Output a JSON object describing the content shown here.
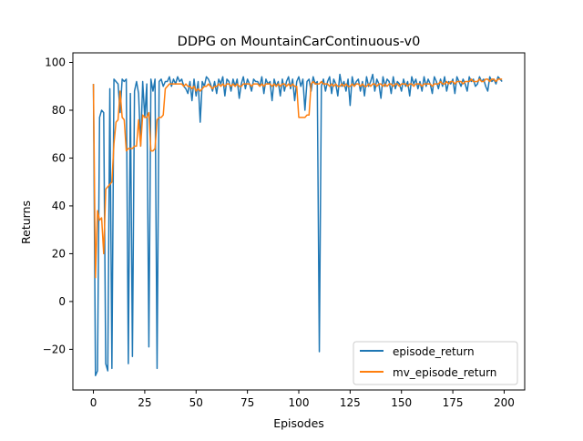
{
  "chart_data": {
    "type": "line",
    "title": "DDPG on MountainCarContinuous-v0",
    "xlabel": "Episodes",
    "ylabel": "Returns",
    "xlim": [
      -10,
      210
    ],
    "ylim": [
      -37,
      104
    ],
    "xticks": [
      0,
      25,
      50,
      75,
      100,
      125,
      150,
      175,
      200
    ],
    "yticks": [
      -20,
      0,
      20,
      40,
      60,
      80,
      100
    ],
    "grid": false,
    "legend_position": "lower-right",
    "series": [
      {
        "name": "episode_return",
        "color": "#1f77b4",
        "x": [
          0,
          1,
          2,
          3,
          4,
          5,
          6,
          7,
          8,
          9,
          10,
          11,
          12,
          13,
          14,
          15,
          16,
          17,
          18,
          19,
          20,
          21,
          22,
          23,
          24,
          25,
          26,
          27,
          28,
          29,
          30,
          31,
          32,
          33,
          34,
          35,
          36,
          37,
          38,
          39,
          40,
          41,
          42,
          43,
          44,
          45,
          46,
          47,
          48,
          49,
          50,
          51,
          52,
          53,
          54,
          55,
          56,
          57,
          58,
          59,
          60,
          61,
          62,
          63,
          64,
          65,
          66,
          67,
          68,
          69,
          70,
          71,
          72,
          73,
          74,
          75,
          76,
          77,
          78,
          79,
          80,
          81,
          82,
          83,
          84,
          85,
          86,
          87,
          88,
          89,
          90,
          91,
          92,
          93,
          94,
          95,
          96,
          97,
          98,
          99,
          100,
          101,
          102,
          103,
          104,
          105,
          106,
          107,
          108,
          109,
          110,
          111,
          112,
          113,
          114,
          115,
          116,
          117,
          118,
          119,
          120,
          121,
          122,
          123,
          124,
          125,
          126,
          127,
          128,
          129,
          130,
          131,
          132,
          133,
          134,
          135,
          136,
          137,
          138,
          139,
          140,
          141,
          142,
          143,
          144,
          145,
          146,
          147,
          148,
          149,
          150,
          151,
          152,
          153,
          154,
          155,
          156,
          157,
          158,
          159,
          160,
          161,
          162,
          163,
          164,
          165,
          166,
          167,
          168,
          169,
          170,
          171,
          172,
          173,
          174,
          175,
          176,
          177,
          178,
          179,
          180,
          181,
          182,
          183,
          184,
          185,
          186,
          187,
          188,
          189,
          190,
          191,
          192,
          193,
          194,
          195,
          196,
          197,
          198,
          199
        ],
        "y": [
          91,
          -31,
          -29,
          77,
          80,
          79,
          -26,
          -29,
          89,
          -28,
          93,
          92,
          91,
          79,
          93,
          92,
          93,
          -26,
          87,
          -23,
          88,
          92,
          87,
          65,
          92,
          77,
          91,
          -19,
          93,
          88,
          93,
          -28,
          92,
          93,
          90,
          92,
          92,
          94,
          90,
          93,
          91,
          94,
          92,
          93,
          90,
          89,
          87,
          92,
          84,
          93,
          86,
          92,
          75,
          92,
          90,
          94,
          93,
          91,
          88,
          92,
          87,
          93,
          91,
          94,
          86,
          93,
          92,
          88,
          93,
          90,
          93,
          85,
          91,
          94,
          89,
          93,
          91,
          88,
          93,
          92,
          92,
          90,
          94,
          87,
          93,
          91,
          92,
          84,
          93,
          90,
          92,
          86,
          93,
          88,
          92,
          94,
          89,
          93,
          84,
          92,
          94,
          90,
          93,
          80,
          92,
          93,
          88,
          94,
          91,
          92,
          -21,
          90,
          93,
          88,
          92,
          94,
          87,
          93,
          91,
          86,
          95,
          90,
          92,
          88,
          93,
          82,
          94,
          90,
          92,
          93,
          88,
          92,
          86,
          94,
          90,
          92,
          95,
          88,
          93,
          91,
          85,
          94,
          90,
          93,
          92,
          87,
          94,
          89,
          92,
          91,
          88,
          93,
          90,
          92,
          86,
          94,
          91,
          93,
          89,
          92,
          88,
          94,
          90,
          93,
          91,
          87,
          94,
          92,
          89,
          93,
          90,
          94,
          88,
          92,
          91,
          93,
          87,
          94,
          92,
          90,
          93,
          91,
          88,
          94,
          92,
          93,
          90,
          91,
          94,
          92,
          93,
          90,
          88,
          94,
          92,
          93,
          91,
          94,
          93,
          92
        ],
        "linewidth": 1.5
      },
      {
        "name": "mv_episode_return",
        "color": "#ff7f0e",
        "x": [
          0,
          1,
          2,
          3,
          4,
          5,
          6,
          7,
          8,
          9,
          10,
          11,
          12,
          13,
          14,
          15,
          16,
          17,
          18,
          19,
          20,
          21,
          22,
          23,
          24,
          25,
          26,
          27,
          28,
          29,
          30,
          31,
          32,
          33,
          34,
          35,
          36,
          37,
          38,
          39,
          40,
          41,
          42,
          43,
          44,
          45,
          46,
          47,
          48,
          49,
          50,
          51,
          52,
          53,
          54,
          55,
          56,
          57,
          58,
          59,
          60,
          61,
          62,
          63,
          64,
          65,
          66,
          67,
          68,
          69,
          70,
          71,
          72,
          73,
          74,
          75,
          76,
          77,
          78,
          79,
          80,
          81,
          82,
          83,
          84,
          85,
          86,
          87,
          88,
          89,
          90,
          91,
          92,
          93,
          94,
          95,
          96,
          97,
          98,
          99,
          100,
          101,
          102,
          103,
          104,
          105,
          106,
          107,
          108,
          109,
          110,
          111,
          112,
          113,
          114,
          115,
          116,
          117,
          118,
          119,
          120,
          121,
          122,
          123,
          124,
          125,
          126,
          127,
          128,
          129,
          130,
          131,
          132,
          133,
          134,
          135,
          136,
          137,
          138,
          139,
          140,
          141,
          142,
          143,
          144,
          145,
          146,
          147,
          148,
          149,
          150,
          151,
          152,
          153,
          154,
          155,
          156,
          157,
          158,
          159,
          160,
          161,
          162,
          163,
          164,
          165,
          166,
          167,
          168,
          169,
          170,
          171,
          172,
          173,
          174,
          175,
          176,
          177,
          178,
          179,
          180,
          181,
          182,
          183,
          184,
          185,
          186,
          187,
          188,
          189,
          190,
          191,
          192,
          193,
          194,
          195,
          196,
          197,
          198,
          199
        ],
        "y": [
          91,
          10,
          38,
          34,
          35,
          20,
          47,
          48,
          49,
          50,
          66,
          75,
          76,
          88,
          77,
          76,
          63,
          64,
          64,
          64,
          65,
          65,
          76,
          65,
          78,
          77,
          77,
          79,
          63,
          63,
          64,
          76,
          77,
          77,
          78,
          89,
          90,
          91,
          91,
          91,
          91,
          91,
          91,
          91,
          90,
          91,
          90,
          90,
          89,
          90,
          88,
          89,
          88,
          89,
          90,
          90,
          91,
          90,
          89,
          90,
          90,
          91,
          90,
          91,
          90,
          91,
          91,
          90,
          91,
          90,
          91,
          90,
          90,
          91,
          91,
          91,
          91,
          90,
          91,
          91,
          91,
          90,
          91,
          90,
          91,
          91,
          91,
          90,
          91,
          90,
          91,
          90,
          91,
          91,
          90,
          91,
          90,
          91,
          90,
          90,
          77,
          77,
          77,
          77,
          78,
          78,
          91,
          92,
          91,
          91,
          91,
          92,
          91,
          91,
          91,
          90,
          91,
          90,
          91,
          90,
          90,
          91,
          90,
          91,
          90,
          90,
          91,
          90,
          91,
          91,
          90,
          91,
          90,
          90,
          91,
          90,
          91,
          91,
          90,
          91,
          91,
          90,
          91,
          90,
          91,
          91,
          90,
          91,
          91,
          90,
          91,
          91,
          91,
          90,
          91,
          91,
          90,
          91,
          91,
          91,
          90,
          91,
          91,
          91,
          91,
          90,
          91,
          91,
          91,
          92,
          91,
          91,
          92,
          91,
          92,
          92,
          91,
          92,
          92,
          92,
          91,
          92,
          92,
          92,
          93,
          92,
          92,
          92,
          93,
          92,
          92,
          93,
          93,
          92,
          93,
          93,
          92,
          93,
          93,
          93
        ],
        "linewidth": 1.5
      }
    ]
  }
}
